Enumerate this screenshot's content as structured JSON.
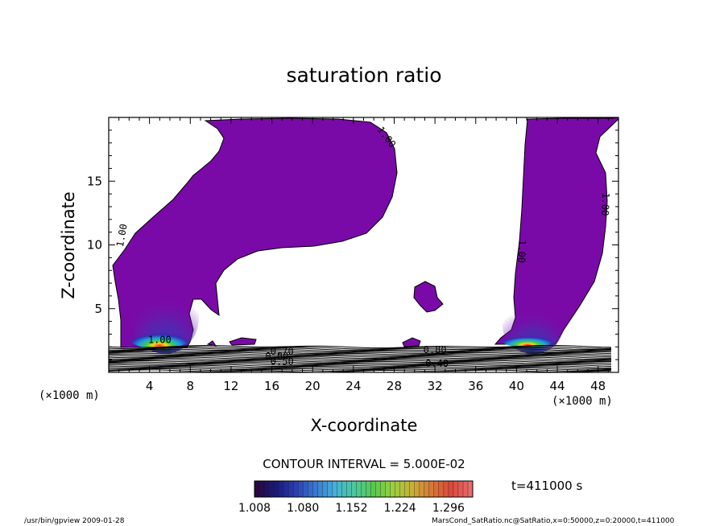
{
  "chart_data": {
    "type": "heatmap",
    "title": "saturation ratio",
    "xlabel": "X-coordinate",
    "ylabel": "Z-coordinate",
    "x_unit": "(×1000 m)",
    "z_unit": "(×1000 m)",
    "xlim": [
      0,
      50
    ],
    "ylim": [
      0,
      20
    ],
    "x_ticks": [
      4,
      8,
      12,
      16,
      20,
      24,
      28,
      32,
      36,
      40,
      44,
      48
    ],
    "x_tick_labels": [
      "4",
      "8",
      "12",
      "16",
      "20",
      "24",
      "28",
      "32",
      "36",
      "40",
      "44",
      "48"
    ],
    "y_ticks": [
      5,
      10,
      15
    ],
    "y_tick_labels": [
      "5",
      "10",
      "15"
    ],
    "contour_interval_label": "CONTOUR INTERVAL = 5.000E-02",
    "time_label": "t=411000 s",
    "colorbar": {
      "min": 1.008,
      "max": 1.332,
      "tick_labels": [
        "1.008",
        "1.080",
        "1.152",
        "1.224",
        "1.296"
      ],
      "colors": [
        "#2a0840",
        "#1a1a7a",
        "#2b3fb0",
        "#3a78d0",
        "#46b0d8",
        "#4cc8a0",
        "#58c850",
        "#98d040",
        "#c8b038",
        "#d87838",
        "#d84a3a",
        "#e86a6a"
      ]
    },
    "contour_labels": [
      {
        "text": "1.00",
        "x": 27.0,
        "z": 18.3,
        "rotate": 52
      },
      {
        "text": "1.00",
        "x": 1.6,
        "z": 10.7,
        "rotate": -80
      },
      {
        "text": "1.00",
        "x": 40.2,
        "z": 9.5,
        "rotate": 92
      },
      {
        "text": "1.00",
        "x": 48.4,
        "z": 13.2,
        "rotate": 92
      },
      {
        "text": "0.70",
        "x": 17.0,
        "z": 1.4,
        "rotate": 0
      },
      {
        "text": "0.80",
        "x": 16.5,
        "z": 1.0,
        "rotate": 0
      },
      {
        "text": "0.50",
        "x": 17.0,
        "z": 0.6,
        "rotate": 0
      },
      {
        "text": "0.80",
        "x": 32.0,
        "z": 1.5,
        "rotate": 0
      },
      {
        "text": "0.40",
        "x": 32.2,
        "z": 0.45,
        "rotate": 0
      },
      {
        "text": "1.00",
        "x": 5.0,
        "z": 2.3,
        "rotate": 0
      }
    ]
  },
  "footer": {
    "left": "/usr/bin/gpview   2009-01-28",
    "right": "MarsCond_SatRatio.nc@SatRatio,x=0:50000,z=0:20000,t=411000"
  }
}
